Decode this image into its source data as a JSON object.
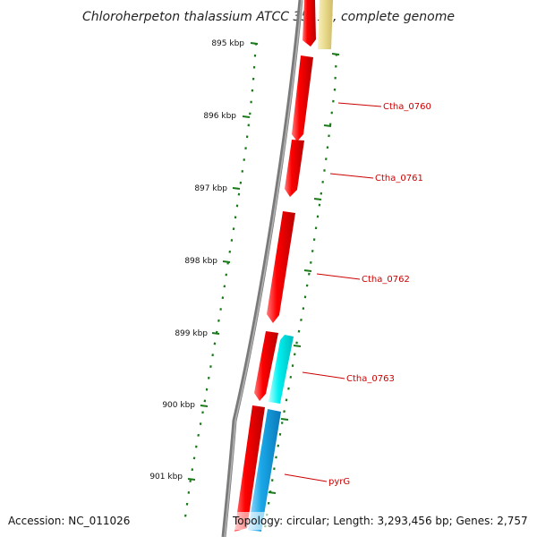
{
  "title": "Chloroherpeton thalassium ATCC 35110, complete genome",
  "accession_text": "Accession: NC_011026",
  "topology_text": "Topology: circular; Length: 3,293,456 bp; Genes: 2,757",
  "kbp_markers": [
    {
      "label": "895 kbp",
      "position_kbp": 895
    },
    {
      "label": "896 kbp",
      "position_kbp": 896
    },
    {
      "label": "897 kbp",
      "position_kbp": 897
    },
    {
      "label": "898 kbp",
      "position_kbp": 898
    },
    {
      "label": "899 kbp",
      "position_kbp": 899
    },
    {
      "label": "900 kbp",
      "position_kbp": 900
    },
    {
      "label": "901 kbp",
      "position_kbp": 901
    }
  ],
  "genes": [
    {
      "id": "Ctha_0760",
      "label": "Ctha_0760"
    },
    {
      "id": "Ctha_0761",
      "label": "Ctha_0761"
    },
    {
      "id": "Ctha_0762",
      "label": "Ctha_0762"
    },
    {
      "id": "Ctha_0763",
      "label": "Ctha_0763"
    },
    {
      "id": "pyrG",
      "label": "pyrG"
    }
  ],
  "colors": {
    "backbone": "#7a7a7a",
    "gene_red": "#ff0000",
    "gene_cyan": "#00e5e5",
    "gene_blue": "#1aa8e8",
    "gene_yellow": "#e8d98a",
    "label_red": "#cc0000",
    "tick_green": "#1a7a1a"
  }
}
